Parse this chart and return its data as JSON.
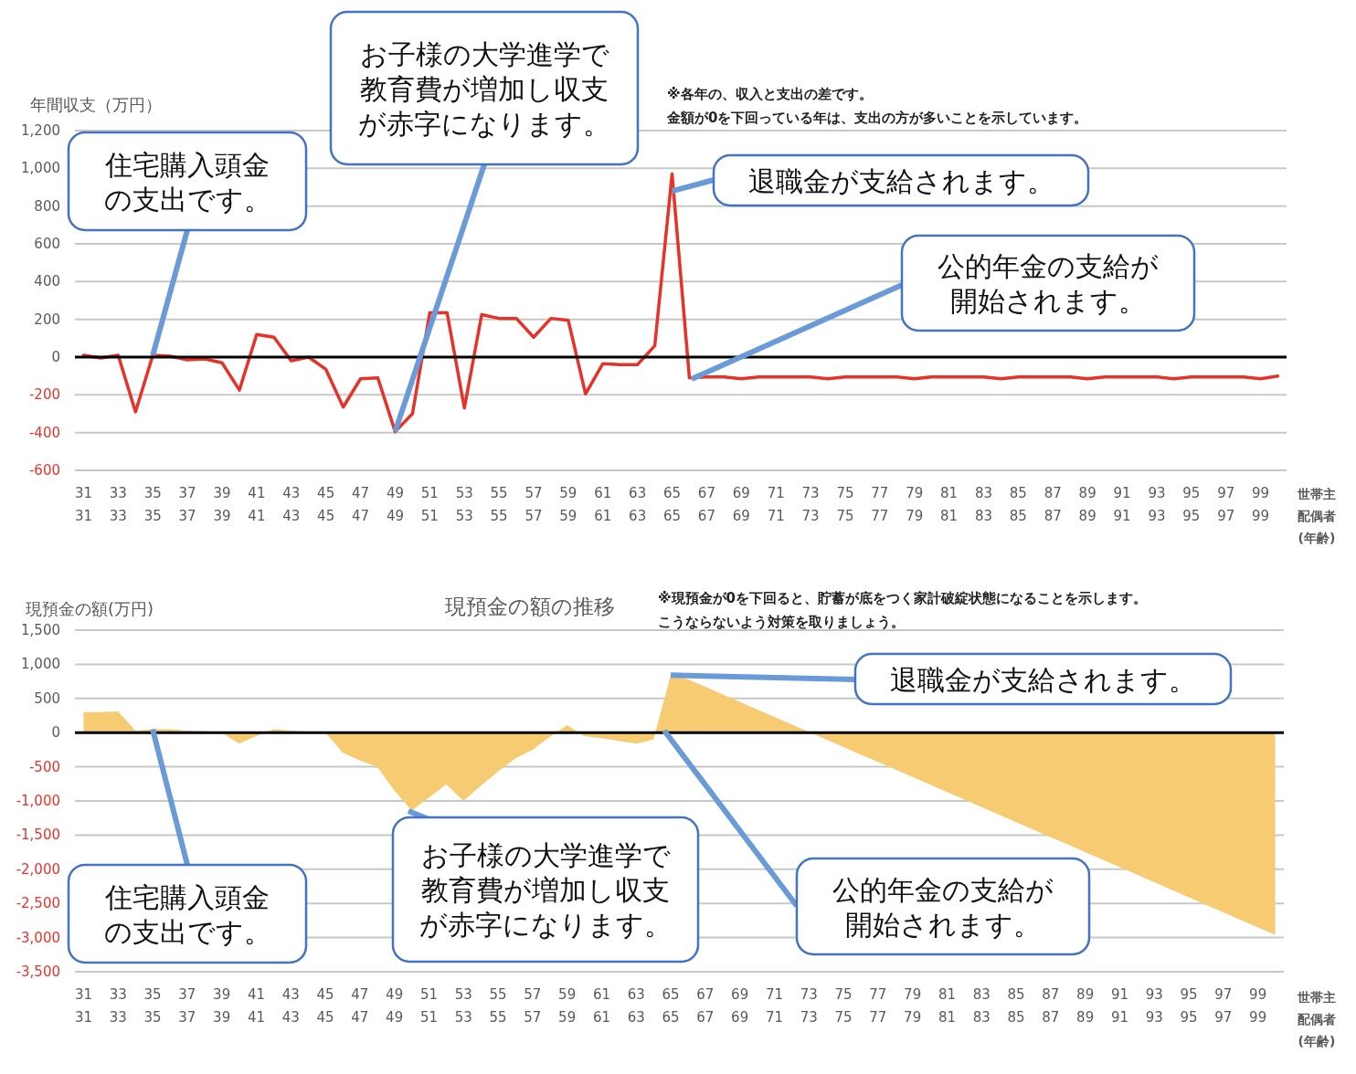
{
  "chart_data": [
    {
      "type": "line",
      "ylabel": "年間収支（万円）",
      "xlabel": "世帯主配偶者(年齢)",
      "categories": [
        "31\n31",
        null,
        "33\n33",
        null,
        "35\n35",
        null,
        "37\n37",
        null,
        "39\n39",
        null,
        "41\n41",
        null,
        "43\n43",
        null,
        "45\n45",
        null,
        "47\n47",
        null,
        "49\n49",
        null,
        "51\n51",
        null,
        "53\n53",
        null,
        "55\n55",
        null,
        "57\n57",
        null,
        "59\n59",
        null,
        "61\n61",
        null,
        "63\n63",
        null,
        "65\n65",
        null,
        "67\n67",
        null,
        "69\n69",
        null,
        "71\n71",
        null,
        "73\n73",
        null,
        "75\n75",
        null,
        "77\n77",
        null,
        "79\n79",
        null,
        "81\n81",
        null,
        "83\n83",
        null,
        "85\n85",
        null,
        "87\n87",
        null,
        "89\n89",
        null,
        "91\n91",
        null,
        "93\n93",
        null,
        "95\n95",
        null,
        "97\n97",
        null,
        "99\n99",
        null
      ],
      "series": [
        {
          "color": "#e63228",
          "values": [
            10,
            -5,
            10,
            -290,
            10,
            5,
            -15,
            -10,
            -30,
            -175,
            120,
            105,
            -20,
            0,
            -65,
            -265,
            -115,
            -110,
            -395,
            -300,
            235,
            235,
            -270,
            225,
            205,
            205,
            105,
            205,
            195,
            -195,
            -35,
            -40,
            -40,
            60,
            970,
            -110,
            -105,
            -105,
            -115,
            -105,
            -105,
            -105,
            -105,
            -115,
            -105,
            -105,
            -105,
            -105,
            -115,
            -105,
            -105,
            -105,
            -105,
            -115,
            -105,
            -105,
            -105,
            -105,
            -115,
            -105,
            -105,
            -105,
            -105,
            -115,
            -105,
            -105,
            -105,
            -105,
            -115,
            -100
          ]
        }
      ],
      "ylim": [
        -600,
        1200
      ],
      "yticks": [
        -600,
        -400,
        -200,
        0,
        200,
        400,
        600,
        800,
        {
          "value": 1000,
          "label": "1,000"
        },
        {
          "value": 1200,
          "label": "1,200"
        }
      ],
      "grid": "y",
      "ref_lines": [
        {
          "axis": "y",
          "value": 0,
          "color": "#000000"
        }
      ],
      "annotations": [
        "※各年の、収入と支出の差です。金額が0を下回っている年は、支出の方が多いことを示しています。",
        {
          "text": "住宅購入頭金の支出です。",
          "x": "35\n35",
          "y": 10
        },
        {
          "text": "お子様の大学進学で教育費が増加し収支が赤字になります。",
          "x": "49\n49",
          "y": -395
        },
        {
          "text": "退職金が支給されます。",
          "x": "65\n65",
          "y": 880
        },
        "公的年金の支給が開始されます。"
      ]
    },
    {
      "type": "area",
      "title": "現預金の額の推移",
      "ylabel": "現預金の額(万円)",
      "xlabel": "世帯主配偶者(年齢)",
      "categories": [
        "31\n31",
        null,
        "33\n33",
        null,
        "35\n35",
        null,
        "37\n37",
        null,
        "39\n39",
        null,
        "41\n41",
        null,
        "43\n43",
        null,
        "45\n45",
        null,
        "47\n47",
        null,
        "49\n49",
        null,
        "51\n51",
        null,
        "53\n53",
        null,
        "55\n55",
        null,
        "57\n57",
        null,
        "59\n59",
        null,
        "61\n61",
        null,
        "63\n63",
        null,
        "65\n65",
        null,
        "67\n67",
        null,
        "69\n69",
        null,
        "71\n71",
        null,
        "73\n73",
        null,
        "75\n75",
        null,
        "77\n77",
        null,
        "79\n79",
        null,
        "81\n81",
        null,
        "83\n83",
        null,
        "85\n85",
        null,
        "87\n87",
        null,
        "89\n89",
        null,
        "91\n91",
        null,
        "93\n93",
        null,
        "95\n95",
        null,
        "97\n97",
        null,
        "99\n99",
        null
      ],
      "series": [
        {
          "color": "#f6cb72",
          "values": [
            300,
            300,
            310,
            30,
            50,
            50,
            30,
            20,
            0,
            -160,
            -50,
            50,
            30,
            10,
            0,
            -290,
            -410,
            -500,
            -850,
            -1140,
            -950,
            -760,
            -1000,
            -780,
            -570,
            -380,
            -250,
            -60,
            110,
            -50,
            -80,
            -120,
            -160,
            -100,
            840,
            780,
            670,
            560,
            450,
            340,
            230,
            120,
            10,
            -100,
            -210,
            -320,
            -430,
            -540,
            -650,
            -760,
            -870,
            -980,
            -1090,
            -1200,
            -1310,
            -1420,
            -1530,
            -1640,
            -1750,
            -1860,
            -1970,
            -2080,
            -2190,
            -2300,
            -2410,
            -2520,
            -2630,
            -2740,
            -2850,
            -2960
          ]
        }
      ],
      "ylim": [
        -3500,
        1500
      ],
      "yticks": [
        {
          "value": -3500,
          "label": "-3,500"
        },
        {
          "value": -3000,
          "label": "-3,000"
        },
        {
          "value": -2500,
          "label": "-2,500"
        },
        {
          "value": -2000,
          "label": "-2,000"
        },
        {
          "value": -1500,
          "label": "-1,500"
        },
        {
          "value": -1000,
          "label": "-1,000"
        },
        -500,
        0,
        500,
        {
          "value": 1000,
          "label": "1,000"
        },
        {
          "value": 1500,
          "label": "1,500"
        }
      ],
      "grid": "y",
      "ref_lines": [
        {
          "axis": "y",
          "value": 0,
          "color": "#000000"
        }
      ],
      "annotations": [
        "※現預金が0を下回ると、貯蓄が底をつく家計破綻状態になることを示します。こうならないよう対策を取りましょう。",
        {
          "text": "住宅購入頭金の支出です。",
          "x": "35\n35",
          "y": 50
        },
        "お子様の大学進学で教育費が増加し収支が赤字になります。",
        {
          "text": "退職金が支給されます。",
          "x": "65\n65",
          "y": 840
        },
        "公的年金の支給が開始されます。"
      ]
    }
  ]
}
